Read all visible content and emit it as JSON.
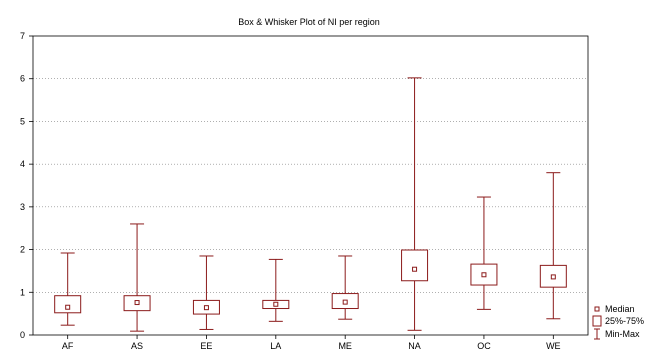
{
  "chart_data": {
    "type": "boxplot",
    "title": "Box & Whisker Plot of NI per region",
    "xlabel": "",
    "ylabel": "",
    "ylim": [
      0,
      7
    ],
    "yticks": [
      0,
      1,
      2,
      3,
      4,
      5,
      6,
      7
    ],
    "grid": "horizontal dotted",
    "legend_position": "bottom-right outside",
    "color": "#8b1a1a",
    "categories": [
      "AF",
      "AS",
      "EE",
      "LA",
      "ME",
      "NA",
      "OC",
      "WE"
    ],
    "series": [
      {
        "category": "AF",
        "min": 0.23,
        "q1": 0.52,
        "median": 0.65,
        "q3": 0.92,
        "max": 1.92
      },
      {
        "category": "AS",
        "min": 0.09,
        "q1": 0.57,
        "median": 0.76,
        "q3": 0.92,
        "max": 2.6
      },
      {
        "category": "EE",
        "min": 0.13,
        "q1": 0.49,
        "median": 0.64,
        "q3": 0.81,
        "max": 1.85
      },
      {
        "category": "LA",
        "min": 0.32,
        "q1": 0.62,
        "median": 0.72,
        "q3": 0.81,
        "max": 1.77
      },
      {
        "category": "ME",
        "min": 0.37,
        "q1": 0.62,
        "median": 0.77,
        "q3": 0.97,
        "max": 1.85
      },
      {
        "category": "NA",
        "min": 0.11,
        "q1": 1.27,
        "median": 1.54,
        "q3": 1.99,
        "max": 6.02
      },
      {
        "category": "OC",
        "min": 0.6,
        "q1": 1.17,
        "median": 1.41,
        "q3": 1.66,
        "max": 3.23
      },
      {
        "category": "WE",
        "min": 0.38,
        "q1": 1.12,
        "median": 1.36,
        "q3": 1.63,
        "max": 3.8
      }
    ],
    "legend": [
      {
        "key": "median",
        "label": "Median"
      },
      {
        "key": "box",
        "label": "25%-75%"
      },
      {
        "key": "whisker",
        "label": "Min-Max"
      }
    ]
  }
}
